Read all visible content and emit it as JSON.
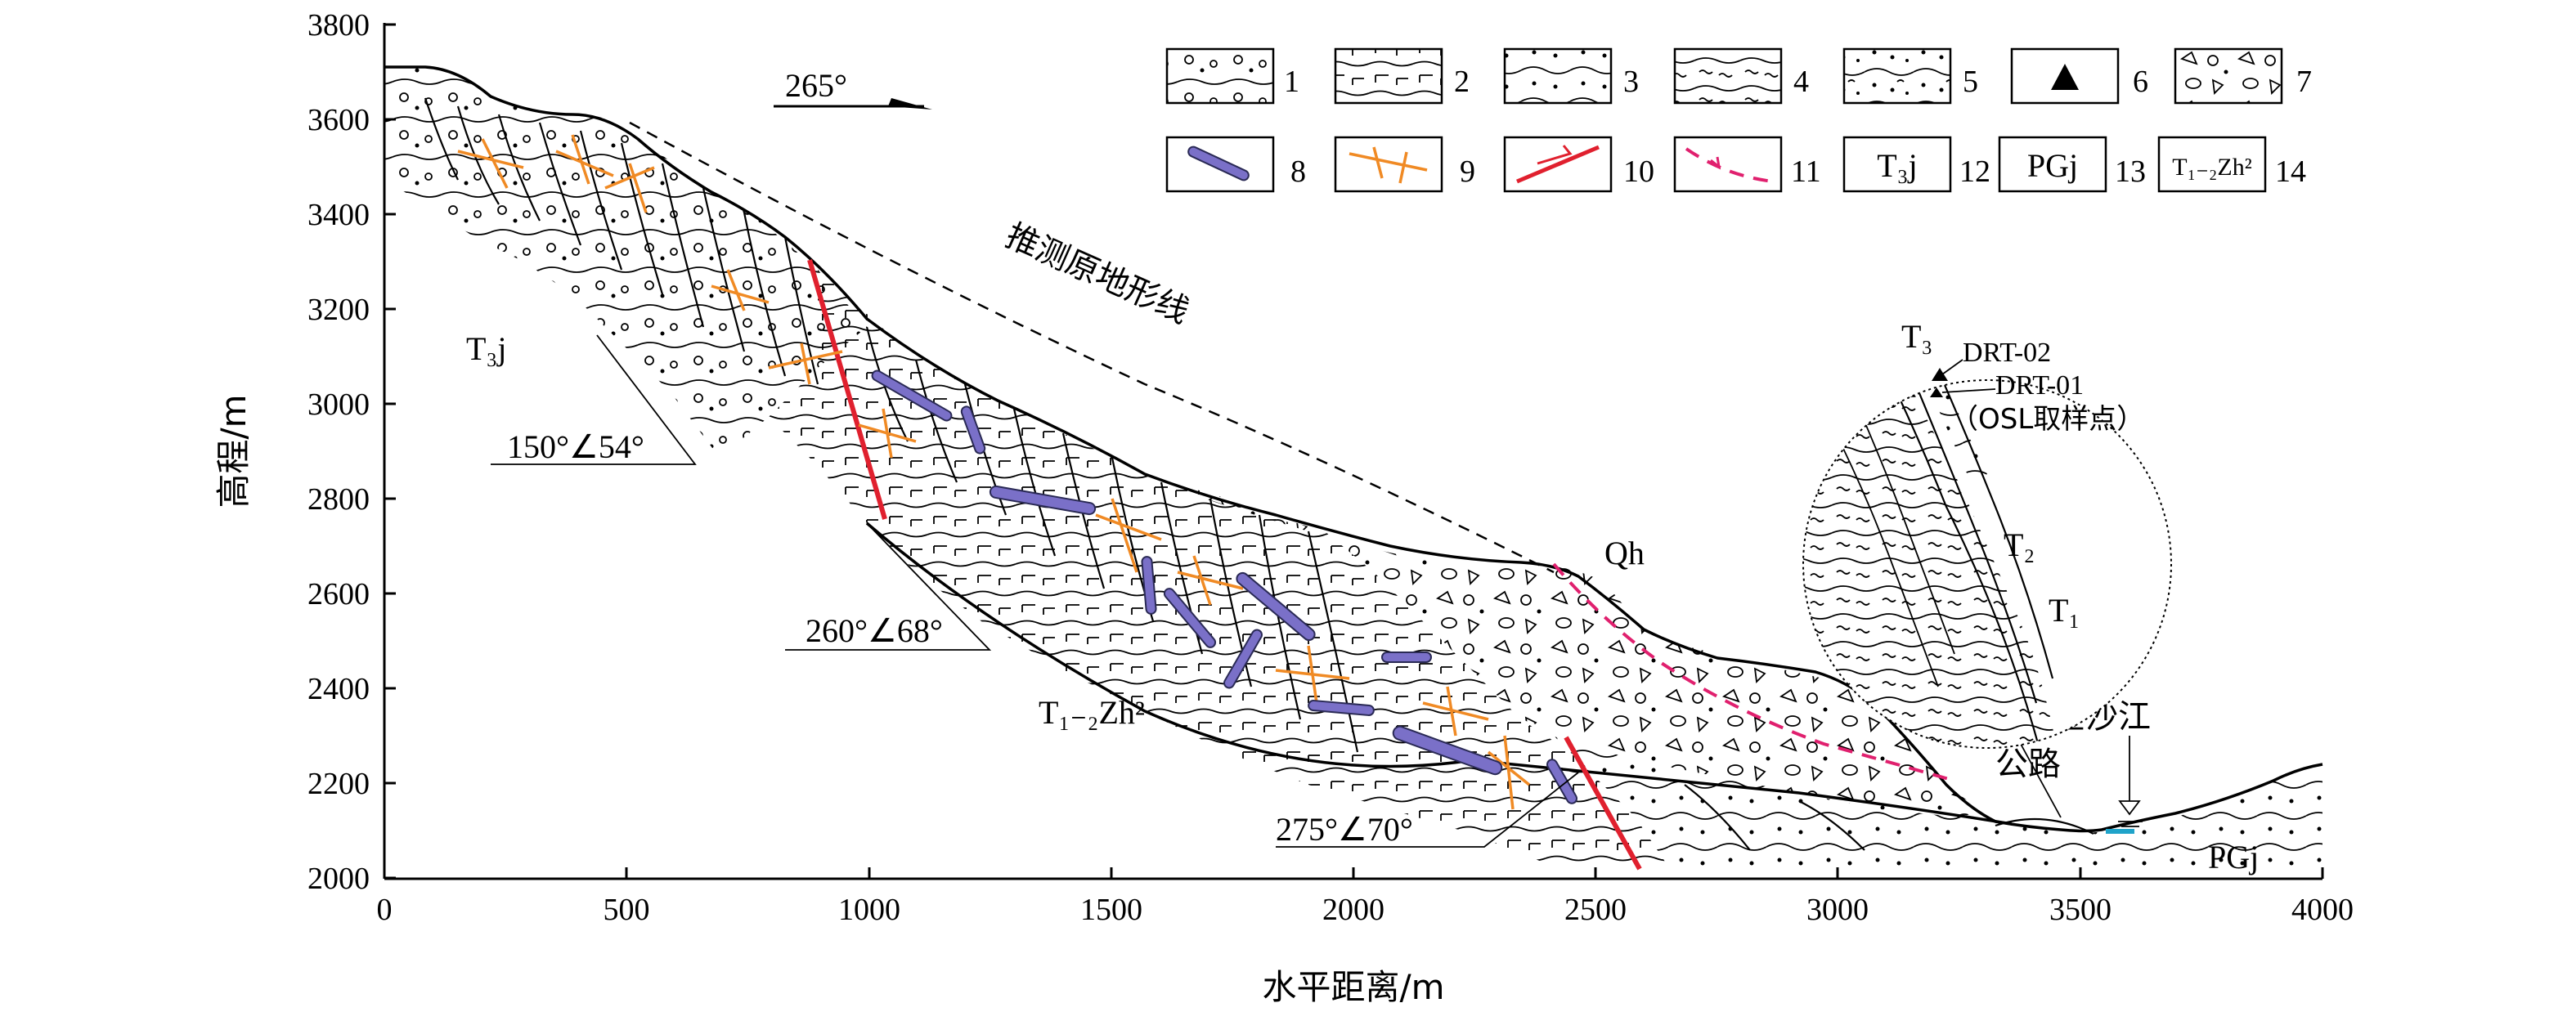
{
  "axes": {
    "y_title": "高程/m",
    "x_title": "水平距离/m",
    "y_ticks": [
      "3800",
      "3600",
      "3400",
      "3200",
      "3000",
      "2800",
      "2600",
      "2400",
      "2200",
      "2000"
    ],
    "x_ticks": [
      "0",
      "500",
      "1000",
      "1500",
      "2000",
      "2500",
      "3000",
      "3500",
      "4000"
    ],
    "x_range": [
      0,
      4000
    ],
    "y_range": [
      2000,
      3800
    ]
  },
  "direction": {
    "label": "265°"
  },
  "legend": {
    "items": [
      {
        "num": "1",
        "icon": "conglomerate-layer-icon"
      },
      {
        "num": "2",
        "icon": "limestone-icon"
      },
      {
        "num": "3",
        "icon": "sandstone-icon"
      },
      {
        "num": "4",
        "icon": "schist-icon"
      },
      {
        "num": "5",
        "icon": "sand-gravel-icon"
      },
      {
        "num": "6",
        "icon": "sample-triangle-icon"
      },
      {
        "num": "7",
        "icon": "breccia-icon"
      },
      {
        "num": "8",
        "icon": "dyke-icon"
      },
      {
        "num": "9",
        "icon": "vein-icon"
      },
      {
        "num": "10",
        "icon": "fault-icon"
      },
      {
        "num": "11",
        "icon": "slide-surface-icon"
      },
      {
        "num": "12",
        "label": "T₃j"
      },
      {
        "num": "13",
        "label": "PGj"
      },
      {
        "num": "14",
        "label": "T₁₋₂Zh²"
      }
    ]
  },
  "annotations": {
    "original_terrain": "推测原地形线",
    "formation_t3j": "T₃j",
    "formation_t12zh2": "T₁₋₂Zh²",
    "formation_pgj": "PGj",
    "qh": "Qh",
    "attitude_1": "150°∠54°",
    "attitude_2": "260°∠68°",
    "attitude_3": "275°∠70°",
    "river": "金沙江",
    "road": "公路"
  },
  "inset": {
    "t3": "T₃",
    "t2": "T₂",
    "t1": "T₁",
    "sample_1": "DRT-02",
    "sample_2": "DRT-01",
    "sample_note": "（OSL取样点）"
  },
  "colors": {
    "fault": "#e0202e",
    "slide": "#e0206e",
    "vein": "#f08a24",
    "dyke": "#7a70c8",
    "river": "#1fa3c9"
  }
}
